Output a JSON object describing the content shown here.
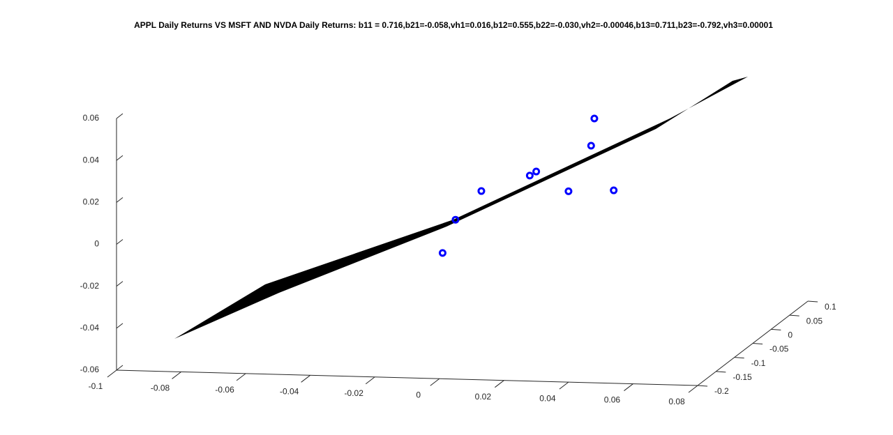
{
  "chart_data": {
    "type": "scatter3",
    "title": "APPL Daily Returns VS MSFT AND NVDA Daily Returns: b11 = 0.716,b21=-0.058,vh1=0.016,b12=0.555,b22=-0.030,vh2=-0.00046,b13=0.711,b23=-0.792,vh3=0.00001",
    "x": [
      0.048,
      0.047,
      0.03,
      0.028,
      0.013,
      0.04,
      0.054,
      0.005,
      0.001
    ],
    "values": [
      0.066,
      0.053,
      0.04,
      0.038,
      0.03,
      0.031,
      0.032,
      0.016,
      0.0
    ],
    "color": "#0000ff",
    "xlim": [
      -0.1,
      0.08
    ],
    "xticks": [
      -0.1,
      -0.08,
      -0.06,
      -0.04,
      -0.02,
      0,
      0.02,
      0.04,
      0.06,
      0.08
    ],
    "ylim": [
      -0.2,
      0.1
    ],
    "yticks": [
      -0.2,
      -0.15,
      -0.1,
      -0.05,
      0,
      0.05,
      0.1
    ],
    "zlim": [
      -0.06,
      0.06
    ],
    "zticks": [
      -0.06,
      -0.04,
      -0.02,
      0,
      0.02,
      0.04,
      0.06
    ]
  }
}
